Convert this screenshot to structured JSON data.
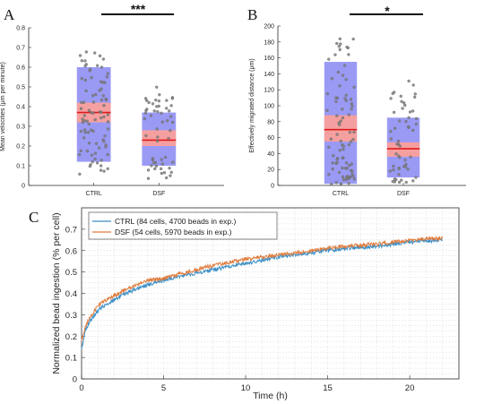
{
  "panels": {
    "A": {
      "letter": "A",
      "significance": "***"
    },
    "B": {
      "letter": "B",
      "significance": "*"
    },
    "C": {
      "letter": "C"
    }
  },
  "colors": {
    "box_iqr": "#9a9af5",
    "box_ci": "#f5a0a0",
    "median_line": "#e01b1b",
    "point_fill": "#808080",
    "ctrl_line": "#3b8fc7",
    "dsf_line": "#e07b3c"
  },
  "chart_data": [
    {
      "type": "scatter",
      "subtype": "box-with-jitter",
      "panel": "A",
      "title": "",
      "xlabel": "",
      "ylabel": "Mean velocities (μm per minute)",
      "categories": [
        "CTRL",
        "DSF"
      ],
      "ylim": [
        0,
        0.8
      ],
      "yticks": [
        "0",
        "0.1",
        "0.2",
        "0.3",
        "0.4",
        "0.5",
        "0.6",
        "0.7",
        "0.8"
      ],
      "grid": false,
      "boxes": [
        {
          "category": "CTRL",
          "q1": 0.12,
          "q3": 0.6,
          "ci_low": 0.32,
          "ci_high": 0.42,
          "median": 0.37,
          "n_points": 84,
          "point_min": 0.04,
          "point_max": 0.69
        },
        {
          "category": "DSF",
          "q1": 0.1,
          "q3": 0.37,
          "ci_low": 0.2,
          "ci_high": 0.28,
          "median": 0.23,
          "n_points": 54,
          "point_min": 0.02,
          "point_max": 0.51
        }
      ]
    },
    {
      "type": "scatter",
      "subtype": "box-with-jitter",
      "panel": "B",
      "title": "",
      "xlabel": "",
      "ylabel": "Effectively migrated distance (μm)",
      "categories": [
        "CTRL",
        "DSF"
      ],
      "ylim": [
        0,
        200
      ],
      "yticks": [
        "0",
        "20",
        "40",
        "60",
        "80",
        "100",
        "120",
        "140",
        "160",
        "180",
        "200"
      ],
      "grid": false,
      "boxes": [
        {
          "category": "CTRL",
          "q1": 2,
          "q3": 155,
          "ci_low": 55,
          "ci_high": 88,
          "median": 70,
          "n_points": 84,
          "point_min": 1,
          "point_max": 188
        },
        {
          "category": "DSF",
          "q1": 10,
          "q3": 85,
          "ci_low": 36,
          "ci_high": 54,
          "median": 46,
          "n_points": 54,
          "point_min": 3,
          "point_max": 138
        }
      ]
    },
    {
      "type": "line",
      "panel": "C",
      "title": "",
      "xlabel": "Time (h)",
      "ylabel": "Normalized bead ingestion (% per cell)",
      "xlim": [
        0,
        23
      ],
      "ylim": [
        0,
        0.8
      ],
      "xticks": [
        "0",
        "5",
        "10",
        "15",
        "20"
      ],
      "yticks": [
        "0",
        "0.1",
        "0.2",
        "0.3",
        "0.4",
        "0.5",
        "0.6",
        "0.7"
      ],
      "grid": true,
      "legend_position": "top-left",
      "series": [
        {
          "name": "CTRL (84 cells, 4700 beads in exp.)",
          "x": [
            0,
            0.25,
            0.5,
            1,
            1.5,
            2,
            3,
            4,
            5,
            6,
            8,
            10,
            12,
            14,
            16,
            18,
            20,
            22
          ],
          "y": [
            0.14,
            0.23,
            0.27,
            0.32,
            0.35,
            0.37,
            0.41,
            0.44,
            0.46,
            0.48,
            0.51,
            0.54,
            0.57,
            0.59,
            0.61,
            0.62,
            0.64,
            0.65
          ]
        },
        {
          "name": "DSF (54 cells, 5970 beads in exp.)",
          "x": [
            0,
            0.25,
            0.5,
            1,
            1.5,
            2,
            3,
            4,
            5,
            6,
            8,
            10,
            12,
            14,
            16,
            18,
            20,
            22
          ],
          "y": [
            0.18,
            0.25,
            0.29,
            0.34,
            0.37,
            0.39,
            0.43,
            0.46,
            0.47,
            0.49,
            0.53,
            0.56,
            0.58,
            0.6,
            0.62,
            0.63,
            0.65,
            0.66
          ]
        }
      ]
    }
  ]
}
